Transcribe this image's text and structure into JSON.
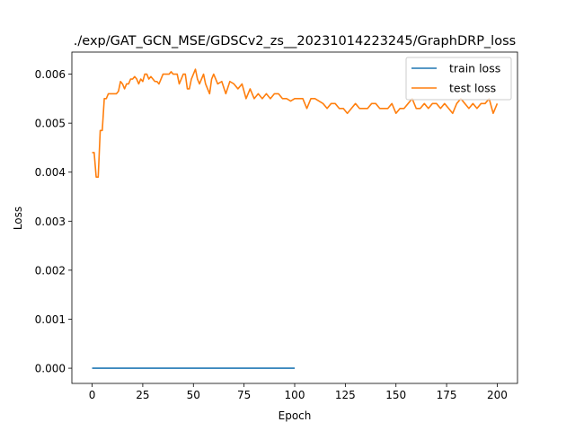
{
  "chart_data": {
    "type": "line",
    "title": "./exp/GAT_GCN_MSE/GDSCv2_zs__20231014223245/GraphDRP_loss",
    "xlabel": "Epoch",
    "ylabel": "Loss",
    "xlim": [
      -10,
      210
    ],
    "ylim": [
      -0.00031,
      0.00645
    ],
    "xticks": [
      0,
      25,
      50,
      75,
      100,
      125,
      150,
      175,
      200
    ],
    "xtick_labels": [
      "0",
      "25",
      "50",
      "75",
      "100",
      "125",
      "150",
      "175",
      "200"
    ],
    "yticks": [
      0.0,
      0.001,
      0.002,
      0.003,
      0.004,
      0.005,
      0.006
    ],
    "ytick_labels": [
      "0.000",
      "0.001",
      "0.002",
      "0.003",
      "0.004",
      "0.005",
      "0.006"
    ],
    "grid": false,
    "legend_position": "top-right",
    "series": [
      {
        "name": "train loss",
        "color": "#1f77b4",
        "x": [
          0,
          100
        ],
        "y": [
          0.0,
          0.0
        ]
      },
      {
        "name": "test loss",
        "color": "#ff7f0e",
        "x": [
          0,
          1,
          2,
          3,
          4,
          5,
          6,
          7,
          8,
          9,
          10,
          11,
          12,
          13,
          14,
          15,
          16,
          17,
          18,
          19,
          20,
          21,
          22,
          23,
          24,
          25,
          26,
          27,
          28,
          29,
          30,
          31,
          32,
          33,
          34,
          35,
          36,
          37,
          38,
          39,
          40,
          41,
          42,
          43,
          44,
          45,
          46,
          47,
          48,
          49,
          50,
          51,
          52,
          53,
          54,
          55,
          56,
          57,
          58,
          59,
          60,
          62,
          64,
          66,
          68,
          70,
          72,
          74,
          76,
          78,
          80,
          82,
          84,
          86,
          88,
          90,
          92,
          94,
          96,
          98,
          100,
          102,
          104,
          106,
          108,
          110,
          112,
          114,
          116,
          118,
          120,
          122,
          124,
          126,
          128,
          130,
          132,
          134,
          136,
          138,
          140,
          142,
          144,
          146,
          148,
          150,
          152,
          154,
          156,
          158,
          160,
          162,
          164,
          166,
          168,
          170,
          172,
          174,
          176,
          178,
          180,
          182,
          184,
          186,
          188,
          190,
          192,
          194,
          196,
          198,
          200
        ],
        "y": [
          0.0044,
          0.0044,
          0.0039,
          0.0039,
          0.00485,
          0.00485,
          0.0055,
          0.0055,
          0.0056,
          0.0056,
          0.0056,
          0.0056,
          0.0056,
          0.00565,
          0.00585,
          0.0058,
          0.0057,
          0.0058,
          0.0058,
          0.0059,
          0.0059,
          0.00595,
          0.0059,
          0.0058,
          0.0059,
          0.00585,
          0.006,
          0.006,
          0.0059,
          0.00595,
          0.0059,
          0.00585,
          0.00585,
          0.0058,
          0.0059,
          0.006,
          0.006,
          0.006,
          0.006,
          0.00605,
          0.006,
          0.006,
          0.006,
          0.0058,
          0.0059,
          0.006,
          0.006,
          0.0057,
          0.0057,
          0.0059,
          0.006,
          0.0061,
          0.0059,
          0.0058,
          0.0059,
          0.006,
          0.0058,
          0.0057,
          0.0056,
          0.0059,
          0.006,
          0.0058,
          0.00585,
          0.0056,
          0.00585,
          0.0058,
          0.0057,
          0.0058,
          0.0055,
          0.0057,
          0.0055,
          0.0056,
          0.0055,
          0.0056,
          0.0055,
          0.0056,
          0.0056,
          0.0055,
          0.0055,
          0.00545,
          0.0055,
          0.0055,
          0.0055,
          0.0053,
          0.0055,
          0.0055,
          0.00545,
          0.0054,
          0.0053,
          0.0054,
          0.0054,
          0.0053,
          0.0053,
          0.0052,
          0.0053,
          0.0054,
          0.0053,
          0.0053,
          0.0053,
          0.0054,
          0.0054,
          0.0053,
          0.0053,
          0.0053,
          0.0054,
          0.0052,
          0.0053,
          0.0053,
          0.0054,
          0.0055,
          0.0053,
          0.0053,
          0.0054,
          0.0053,
          0.0054,
          0.0054,
          0.0053,
          0.0054,
          0.0053,
          0.0052,
          0.0054,
          0.0055,
          0.0054,
          0.0053,
          0.0054,
          0.0053,
          0.0054,
          0.0054,
          0.0055,
          0.0052,
          0.0054
        ]
      }
    ]
  }
}
